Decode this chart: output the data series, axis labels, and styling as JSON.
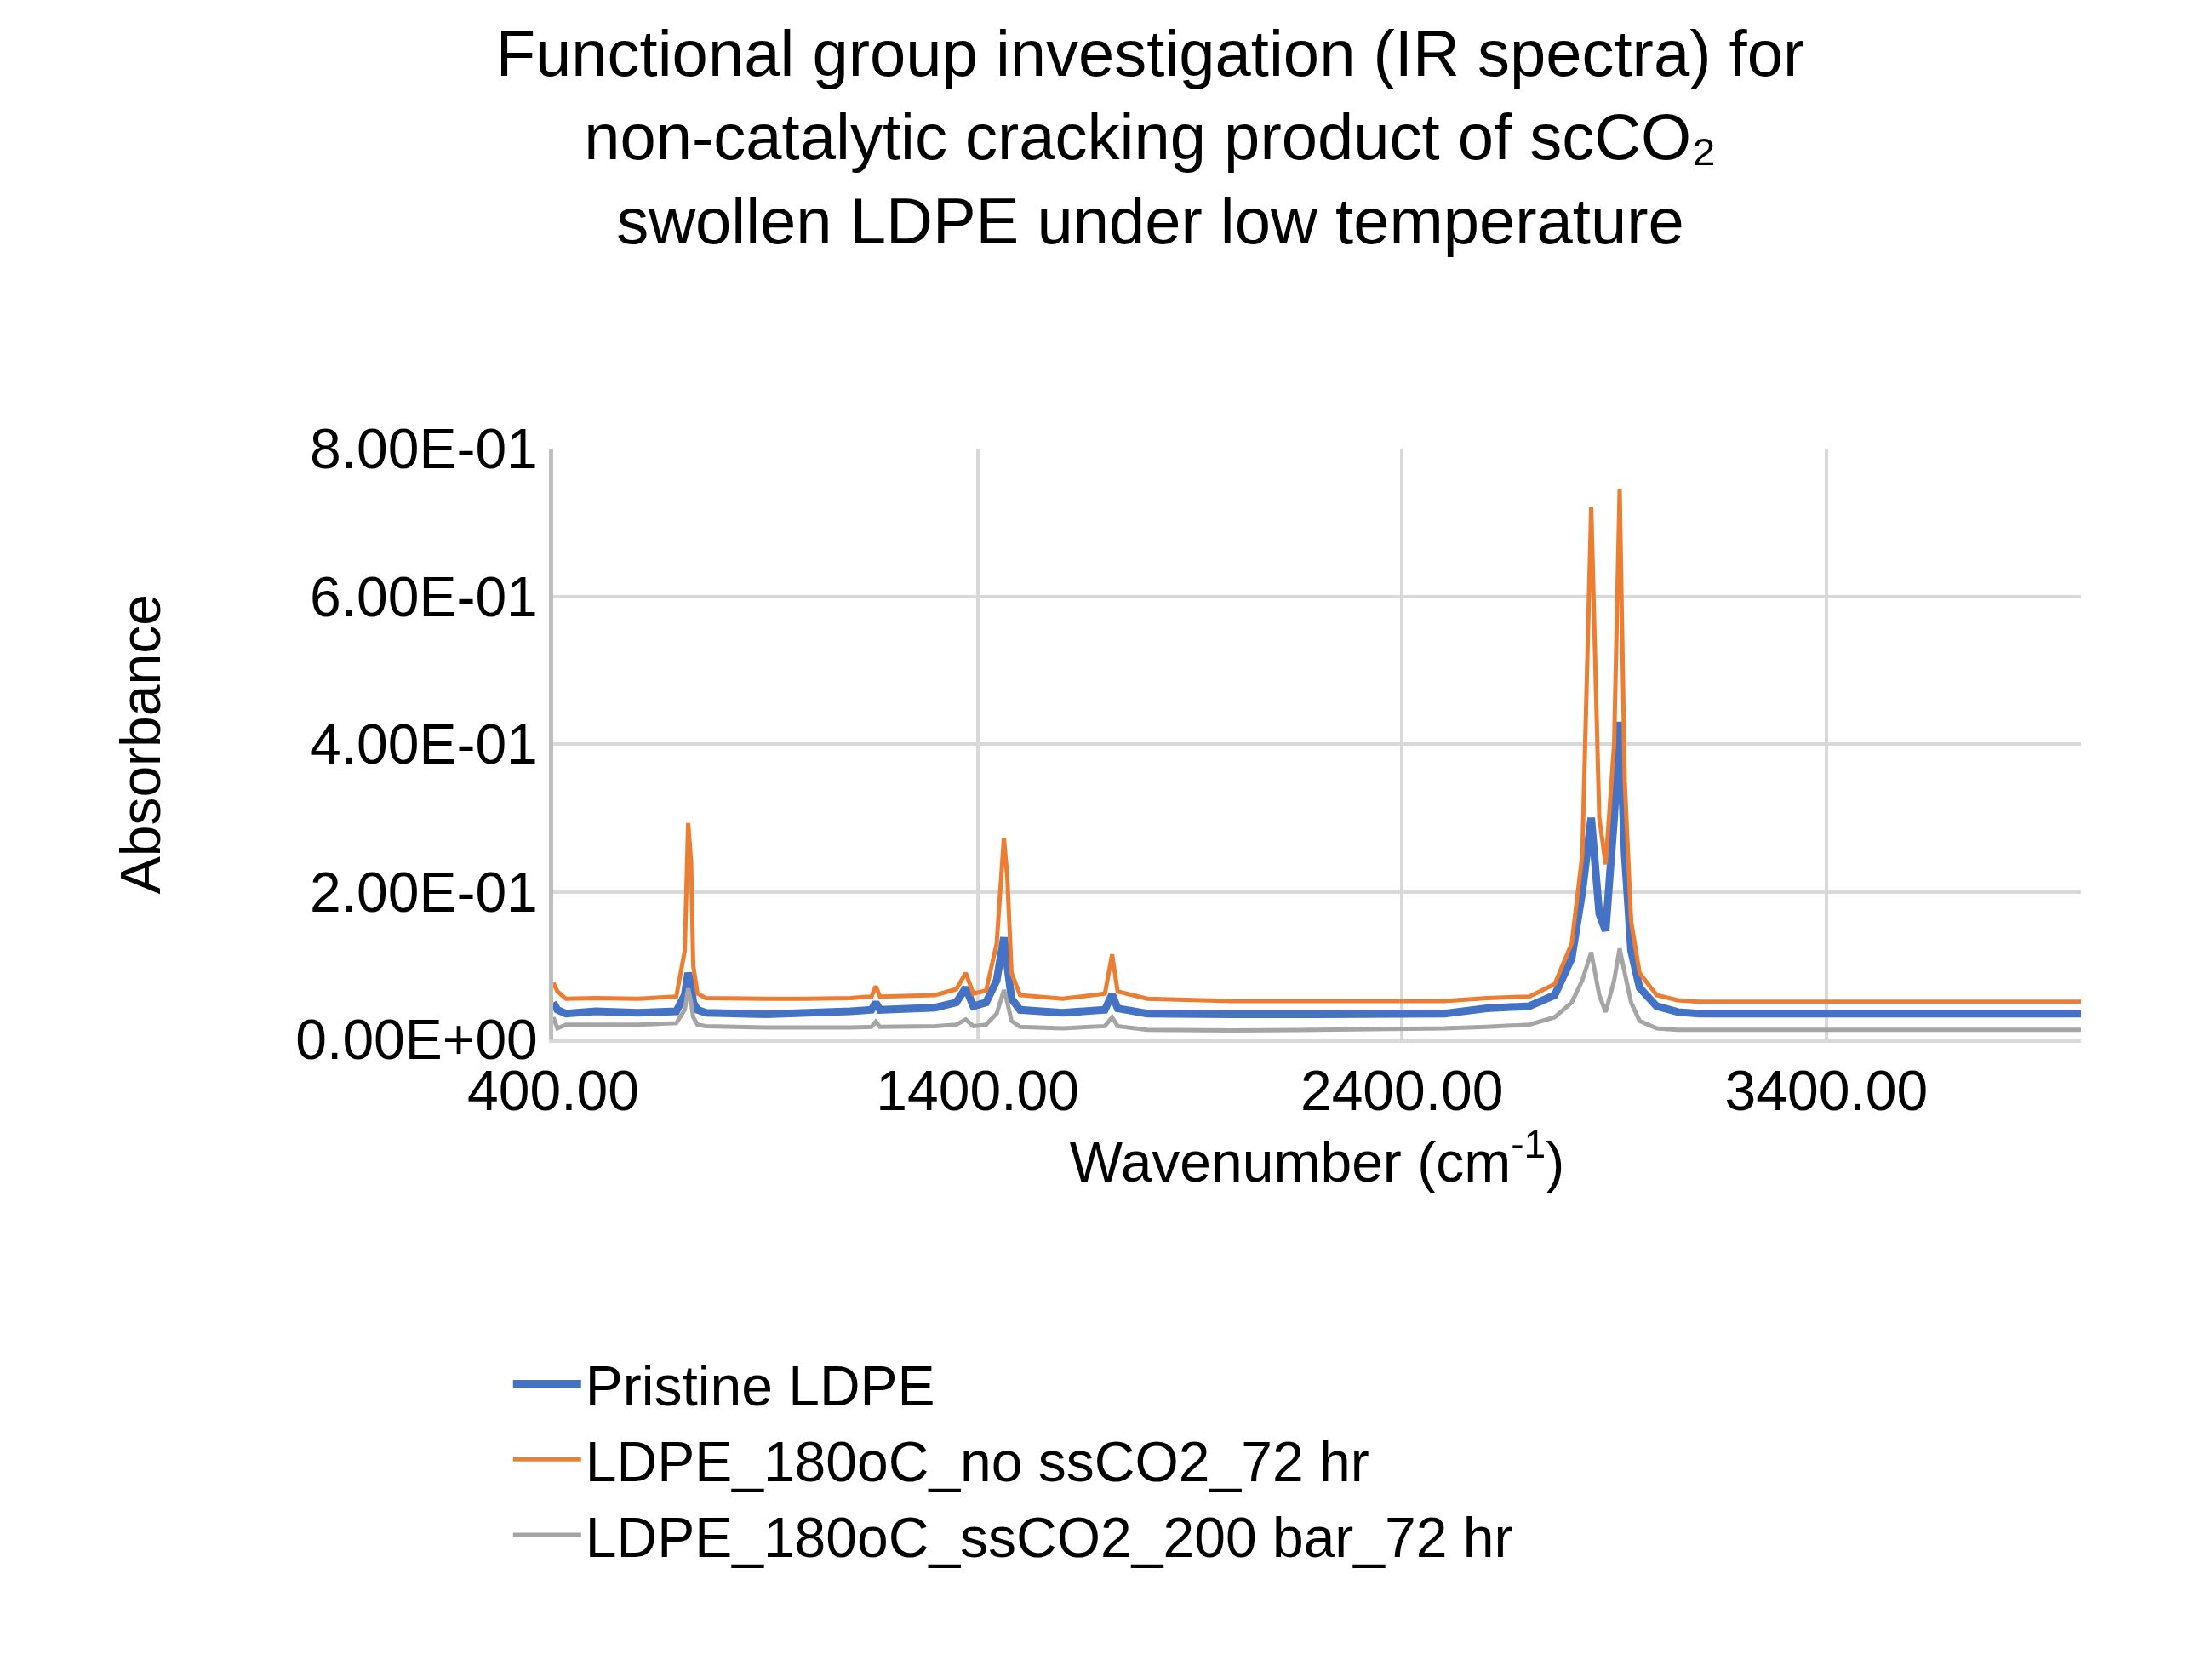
{
  "chart_data": {
    "type": "line",
    "title": "Functional group investigation (IR spectra) for\nnon-catalytic cracking product of scCO₂\nswollen LDPE under low temperature",
    "xlabel": "Wavenumber (cm$^{-1}$)",
    "ylabel": "Absorbance",
    "x": [
      400,
      410,
      430,
      500,
      600,
      690,
      710,
      718,
      725,
      730,
      740,
      760,
      900,
      1000,
      1100,
      1150,
      1160,
      1170,
      1300,
      1350,
      1372,
      1390,
      1420,
      1445,
      1462,
      1470,
      1480,
      1500,
      1600,
      1700,
      1717,
      1730,
      1800,
      2000,
      2200,
      2500,
      2600,
      2700,
      2760,
      2800,
      2825,
      2846,
      2865,
      2880,
      2900,
      2913,
      2925,
      2940,
      2960,
      3000,
      3050,
      3100,
      3500,
      4000
    ],
    "series": [
      {
        "name": "Pristine LDPE",
        "color": "#4472c4",
        "values": [
          0.05,
          0.04,
          0.035,
          0.038,
          0.036,
          0.038,
          0.06,
          0.09,
          0.075,
          0.05,
          0.04,
          0.036,
          0.034,
          0.036,
          0.038,
          0.04,
          0.05,
          0.04,
          0.043,
          0.05,
          0.07,
          0.045,
          0.05,
          0.08,
          0.138,
          0.1,
          0.055,
          0.04,
          0.036,
          0.04,
          0.061,
          0.042,
          0.035,
          0.034,
          0.034,
          0.035,
          0.042,
          0.045,
          0.06,
          0.11,
          0.2,
          0.3,
          0.17,
          0.147,
          0.3,
          0.43,
          0.25,
          0.12,
          0.07,
          0.045,
          0.037,
          0.035,
          0.035,
          0.035
        ]
      },
      {
        "name": "LDPE_180oC_no ssCO2_72 hr",
        "color": "#ed7d31",
        "values": [
          0.077,
          0.065,
          0.055,
          0.056,
          0.055,
          0.058,
          0.12,
          0.293,
          0.24,
          0.1,
          0.062,
          0.056,
          0.055,
          0.055,
          0.056,
          0.058,
          0.072,
          0.058,
          0.06,
          0.068,
          0.09,
          0.062,
          0.066,
          0.13,
          0.273,
          0.22,
          0.09,
          0.06,
          0.055,
          0.062,
          0.115,
          0.065,
          0.055,
          0.052,
          0.052,
          0.052,
          0.056,
          0.058,
          0.075,
          0.13,
          0.25,
          0.721,
          0.3,
          0.237,
          0.4,
          0.745,
          0.35,
          0.16,
          0.09,
          0.06,
          0.053,
          0.051,
          0.051,
          0.051
        ]
      },
      {
        "name": "LDPE_180oC_ssCO2_200 bar_72 hr",
        "color": "#a5a5a5",
        "values": [
          0.03,
          0.015,
          0.02,
          0.02,
          0.02,
          0.022,
          0.04,
          0.069,
          0.05,
          0.03,
          0.02,
          0.018,
          0.016,
          0.016,
          0.016,
          0.017,
          0.024,
          0.017,
          0.018,
          0.02,
          0.027,
          0.018,
          0.02,
          0.035,
          0.067,
          0.05,
          0.025,
          0.017,
          0.015,
          0.018,
          0.03,
          0.018,
          0.013,
          0.012,
          0.013,
          0.015,
          0.017,
          0.02,
          0.03,
          0.05,
          0.08,
          0.118,
          0.06,
          0.037,
          0.08,
          0.123,
          0.09,
          0.05,
          0.025,
          0.015,
          0.013,
          0.013,
          0.013,
          0.013
        ]
      }
    ],
    "xlim": [
      400,
      4000
    ],
    "xticks": [
      {
        "value": 400,
        "label": "400.00"
      },
      {
        "value": 1400,
        "label": "1400.00"
      },
      {
        "value": 2400,
        "label": "2400.00"
      },
      {
        "value": 3400,
        "label": "3400.00"
      }
    ],
    "ylim": [
      0,
      0.8
    ],
    "yticks": [
      {
        "value": 0,
        "label": "0.00E+00"
      },
      {
        "value": 0.2,
        "label": "2.00E-01"
      },
      {
        "value": 0.4,
        "label": "4.00E-01"
      },
      {
        "value": 0.6,
        "label": "6.00E-01"
      },
      {
        "value": 0.8,
        "label": "8.00E-01"
      }
    ],
    "grid": true,
    "legend": "bottom",
    "marker": "none",
    "line_style": "solid"
  }
}
